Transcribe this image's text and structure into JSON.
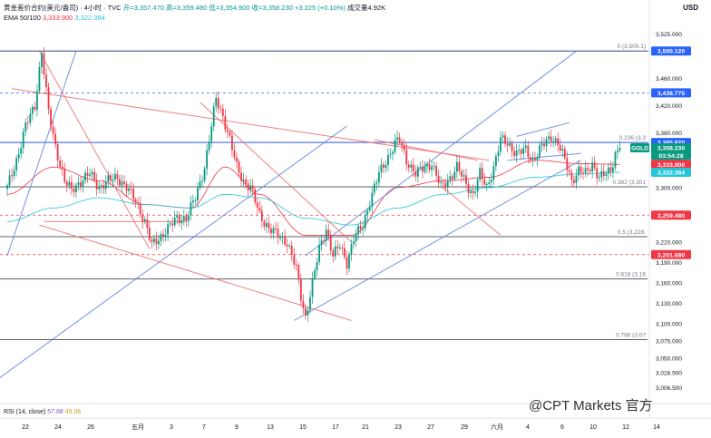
{
  "header": {
    "line1": "黄金差价合约(美元/盎司) · 4小时 · TVC",
    "ohlc": "开=3,357.470 高=3,359.480 低=3,354.900 收=3,358.230 +3.225 (+0.10%)",
    "volume": "成交量4.92K",
    "ema_label": "EMA 50/100",
    "ema50": "3,333.900",
    "ema100": "3,322.384"
  },
  "currency": "USD",
  "rsi": {
    "label": "RSI (14, close)",
    "value": "57.88",
    "ma": "49.06"
  },
  "watermark": "@CPT Markets 官方",
  "colors": {
    "up": "#089981",
    "down": "#f23645",
    "ema50": "#f23645",
    "ema100": "#26c6da",
    "trend_blue": "#5b7fe0",
    "trend_red": "#ef6b6b",
    "fib": "#787b86"
  },
  "chart_data": {
    "type": "candlestick",
    "symbol": "GOLD",
    "y_range": [
      2990,
      3535
    ],
    "y_ticks": [
      "3,525.000",
      "3,460.000",
      "3,420.000",
      "3,380.000",
      "3,340.000",
      "3,300.000",
      "3,260.000",
      "3,220.000",
      "3,190.000",
      "3,160.000",
      "3,130.000",
      "3,100.000",
      "3,075.000",
      "3,050.000",
      "3,028.500",
      "3,006.500"
    ],
    "y_tick_values": [
      3525,
      3460,
      3420,
      3380,
      3340,
      3300,
      3260,
      3220,
      3190,
      3160,
      3130,
      3100,
      3075,
      3050,
      3028.5,
      3006.5
    ],
    "x_ticks": [
      "22",
      "24",
      "26",
      "五月",
      "3",
      "7",
      "9",
      "13",
      "15",
      "17",
      "21",
      "23",
      "27",
      "29",
      "六月",
      "4",
      "6",
      "10",
      "12",
      "14"
    ],
    "fib_levels": [
      {
        "label": "0 (3,500.1)",
        "value": 3500.12
      },
      {
        "label": "0.236 (3,3",
        "value": 3365.97
      },
      {
        "label": "0.382 (3,301",
        "value": 3301
      },
      {
        "label": "0.5 (3,228.",
        "value": 3228
      },
      {
        "label": "0.618 (3,16",
        "value": 3166
      },
      {
        "label": "0.786 (3,07",
        "value": 3077
      }
    ],
    "price_labels": [
      {
        "text": "3,500.120",
        "value": 3500.12,
        "color": "#2962ff",
        "kind": "dashed"
      },
      {
        "text": "3,438.775",
        "value": 3438.775,
        "color": "#2962ff",
        "kind": "dashed"
      },
      {
        "text": "3,365.970",
        "value": 3365.97,
        "color": "#2962ff",
        "kind": "solid"
      },
      {
        "text": "3,358.230",
        "value": 3358.23,
        "color": "#089981",
        "kind": "current"
      },
      {
        "text": "03:54:28",
        "value": 3347,
        "color": "#089981",
        "kind": "timer"
      },
      {
        "text": "3,333.900",
        "value": 3333.9,
        "color": "#f23645",
        "kind": "ema"
      },
      {
        "text": "3,322.384",
        "value": 3322.384,
        "color": "#26c6da",
        "kind": "ema"
      },
      {
        "text": "3,259.480",
        "value": 3259.48,
        "color": "#f23645",
        "kind": "dashed"
      },
      {
        "text": "3,201.680",
        "value": 3201.68,
        "color": "#f23645",
        "kind": "dashed"
      }
    ],
    "anchors": [
      [
        0,
        3300
      ],
      [
        4,
        3340
      ],
      [
        8,
        3390
      ],
      [
        12,
        3420
      ],
      [
        15,
        3500
      ],
      [
        18,
        3410
      ],
      [
        21,
        3360
      ],
      [
        25,
        3310
      ],
      [
        28,
        3295
      ],
      [
        32,
        3310
      ],
      [
        36,
        3320
      ],
      [
        40,
        3300
      ],
      [
        44,
        3310
      ],
      [
        48,
        3315
      ],
      [
        52,
        3300
      ],
      [
        56,
        3280
      ],
      [
        60,
        3250
      ],
      [
        63,
        3215
      ],
      [
        66,
        3225
      ],
      [
        70,
        3240
      ],
      [
        74,
        3255
      ],
      [
        78,
        3255
      ],
      [
        82,
        3285
      ],
      [
        86,
        3330
      ],
      [
        88,
        3370
      ],
      [
        91,
        3430
      ],
      [
        94,
        3405
      ],
      [
        97,
        3370
      ],
      [
        100,
        3330
      ],
      [
        103,
        3310
      ],
      [
        106,
        3300
      ],
      [
        110,
        3260
      ],
      [
        114,
        3240
      ],
      [
        118,
        3230
      ],
      [
        122,
        3220
      ],
      [
        126,
        3180
      ],
      [
        128,
        3140
      ],
      [
        130,
        3110
      ],
      [
        133,
        3160
      ],
      [
        136,
        3210
      ],
      [
        139,
        3240
      ],
      [
        142,
        3200
      ],
      [
        145,
        3215
      ],
      [
        148,
        3190
      ],
      [
        151,
        3225
      ],
      [
        155,
        3245
      ],
      [
        158,
        3280
      ],
      [
        162,
        3320
      ],
      [
        166,
        3345
      ],
      [
        169,
        3365
      ],
      [
        171,
        3370
      ],
      [
        174,
        3340
      ],
      [
        178,
        3320
      ],
      [
        182,
        3330
      ],
      [
        185,
        3335
      ],
      [
        189,
        3300
      ],
      [
        192,
        3310
      ],
      [
        196,
        3330
      ],
      [
        200,
        3305
      ],
      [
        203,
        3290
      ],
      [
        206,
        3320
      ],
      [
        209,
        3300
      ],
      [
        212,
        3330
      ],
      [
        215,
        3370
      ],
      [
        218,
        3365
      ],
      [
        222,
        3350
      ],
      [
        226,
        3355
      ],
      [
        229,
        3340
      ],
      [
        233,
        3360
      ],
      [
        237,
        3375
      ],
      [
        240,
        3365
      ],
      [
        243,
        3340
      ],
      [
        246,
        3310
      ],
      [
        249,
        3325
      ],
      [
        252,
        3320
      ],
      [
        255,
        3335
      ],
      [
        258,
        3315
      ],
      [
        261,
        3320
      ],
      [
        263,
        3325
      ],
      [
        265,
        3350
      ],
      [
        267,
        3358.23
      ]
    ],
    "ema50": [
      [
        0,
        3290
      ],
      [
        20,
        3330
      ],
      [
        40,
        3310
      ],
      [
        60,
        3275
      ],
      [
        80,
        3270
      ],
      [
        95,
        3330
      ],
      [
        110,
        3290
      ],
      [
        130,
        3230
      ],
      [
        150,
        3230
      ],
      [
        170,
        3300
      ],
      [
        190,
        3310
      ],
      [
        210,
        3315
      ],
      [
        230,
        3340
      ],
      [
        250,
        3335
      ],
      [
        267,
        3333.9
      ]
    ],
    "ema100": [
      [
        0,
        3250
      ],
      [
        20,
        3270
      ],
      [
        40,
        3285
      ],
      [
        60,
        3275
      ],
      [
        80,
        3270
      ],
      [
        95,
        3290
      ],
      [
        110,
        3285
      ],
      [
        130,
        3255
      ],
      [
        150,
        3245
      ],
      [
        170,
        3270
      ],
      [
        190,
        3290
      ],
      [
        210,
        3300
      ],
      [
        230,
        3315
      ],
      [
        250,
        3320
      ],
      [
        267,
        3322.384
      ]
    ],
    "trendlines": [
      {
        "color": "#5b7fe0",
        "from": [
          -12,
          3000
        ],
        "to": [
          148,
          3390
        ]
      },
      {
        "color": "#5b7fe0",
        "from": [
          125,
          3105
        ],
        "to": [
          250,
          3340
        ]
      },
      {
        "color": "#5b7fe0",
        "from": [
          0,
          3200
        ],
        "to": [
          30,
          3500
        ]
      },
      {
        "color": "#5b7fe0",
        "from": [
          130,
          3200
        ],
        "to": [
          248,
          3500
        ]
      },
      {
        "color": "#5b7fe0",
        "from": [
          218,
          3340
        ],
        "to": [
          250,
          3350
        ]
      },
      {
        "color": "#5b7fe0",
        "from": [
          222,
          3375
        ],
        "to": [
          245,
          3395
        ]
      },
      {
        "color": "#ef6b6b",
        "from": [
          2,
          3445
        ],
        "to": [
          210,
          3340
        ]
      },
      {
        "color": "#ef6b6b",
        "from": [
          14,
          3500
        ],
        "to": [
          62,
          3210
        ]
      },
      {
        "color": "#ef6b6b",
        "from": [
          14,
          3245
        ],
        "to": [
          150,
          3105
        ]
      },
      {
        "color": "#ef6b6b",
        "from": [
          84,
          3425
        ],
        "to": [
          150,
          3220
        ]
      },
      {
        "color": "#ef6b6b",
        "from": [
          160,
          3370
        ],
        "to": [
          205,
          3340
        ]
      },
      {
        "color": "#ef6b6b",
        "from": [
          190,
          3300
        ],
        "to": [
          215,
          3230
        ]
      },
      {
        "color": "#ef6b6b",
        "from": [
          16,
          3250
        ],
        "to": [
          78,
          3250
        ]
      }
    ]
  }
}
